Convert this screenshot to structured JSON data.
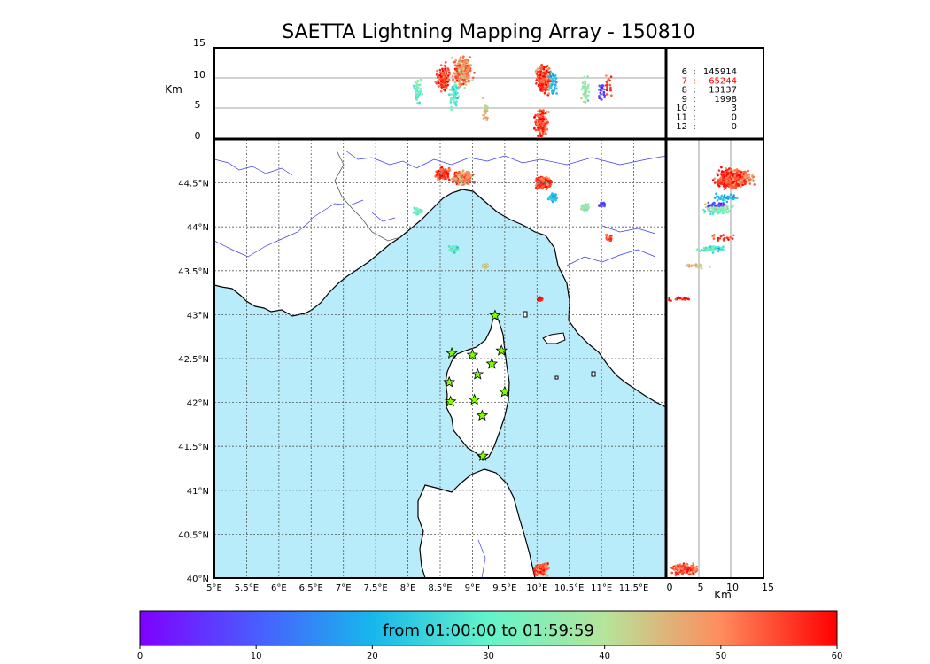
{
  "title": "SAETTA Lightning Mapping Array - 150810",
  "alt_axis": {
    "label": "Km",
    "ticks": [
      "15",
      "10",
      "5",
      "0"
    ],
    "range": [
      0,
      15
    ]
  },
  "map": {
    "lon_range": [
      5,
      12.0
    ],
    "lat_range": [
      40,
      45.0
    ],
    "lon_ticks": [
      "5°E",
      "5.5°E",
      "6°E",
      "6.5°E",
      "7°E",
      "7.5°E",
      "8°E",
      "8.5°E",
      "9°E",
      "9.5°E",
      "10°E",
      "10.5°E",
      "11°E",
      "11.5°E"
    ],
    "lat_ticks": [
      "44.5°N",
      "44°N",
      "43.5°N",
      "43°N",
      "42.5°N",
      "42°N",
      "41.5°N",
      "41°N",
      "40.5°N",
      "40°N"
    ],
    "sea_color": "#b8ecfa",
    "land_color": "#ffffff"
  },
  "alt_side_axis": {
    "label": "Km",
    "ticks": [
      "0",
      "5",
      "10",
      "15"
    ]
  },
  "station_counts": [
    {
      "stations": "6",
      "count": "145914",
      "color": "#000000"
    },
    {
      "stations": "7",
      "count": "65244",
      "color": "#ff0000"
    },
    {
      "stations": "8",
      "count": "13137",
      "color": "#000000"
    },
    {
      "stations": "9",
      "count": "1998",
      "color": "#000000"
    },
    {
      "stations": "10",
      "count": "3",
      "color": "#000000"
    },
    {
      "stations": "11",
      "count": "0",
      "color": "#000000"
    },
    {
      "stations": "12",
      "count": "0",
      "color": "#000000"
    }
  ],
  "stations": [
    {
      "lon": 9.35,
      "lat": 42.99
    },
    {
      "lon": 8.68,
      "lat": 42.56
    },
    {
      "lon": 9.0,
      "lat": 42.54
    },
    {
      "lon": 9.45,
      "lat": 42.59
    },
    {
      "lon": 9.08,
      "lat": 42.32
    },
    {
      "lon": 9.3,
      "lat": 42.44
    },
    {
      "lon": 8.64,
      "lat": 42.23
    },
    {
      "lon": 8.66,
      "lat": 42.01
    },
    {
      "lon": 9.03,
      "lat": 42.03
    },
    {
      "lon": 9.5,
      "lat": 42.12
    },
    {
      "lon": 9.15,
      "lat": 41.85
    },
    {
      "lon": 9.16,
      "lat": 41.39
    }
  ],
  "lightning_clusters": [
    {
      "lon": 8.85,
      "lat": 44.55,
      "r": 0.15,
      "t": 50,
      "n": 260,
      "alt": 11
    },
    {
      "lon": 8.55,
      "lat": 44.6,
      "r": 0.12,
      "t": 55,
      "n": 120,
      "alt": 10
    },
    {
      "lon": 10.1,
      "lat": 44.5,
      "r": 0.12,
      "t": 55,
      "n": 220,
      "alt": 10
    },
    {
      "lon": 10.25,
      "lat": 44.33,
      "r": 0.08,
      "t": 20,
      "n": 40,
      "alt": 9
    },
    {
      "lon": 8.15,
      "lat": 44.18,
      "r": 0.08,
      "t": 32,
      "n": 45,
      "alt": 8
    },
    {
      "lon": 10.75,
      "lat": 44.22,
      "r": 0.07,
      "t": 36,
      "n": 45,
      "alt": 8
    },
    {
      "lon": 11.0,
      "lat": 44.25,
      "r": 0.06,
      "t": 8,
      "n": 25,
      "alt": 8
    },
    {
      "lon": 11.1,
      "lat": 43.88,
      "r": 0.07,
      "t": 55,
      "n": 20,
      "alt": 9
    },
    {
      "lon": 8.72,
      "lat": 43.75,
      "r": 0.07,
      "t": 28,
      "n": 60,
      "alt": 7
    },
    {
      "lon": 9.2,
      "lat": 43.55,
      "r": 0.05,
      "t": 45,
      "n": 25,
      "alt": 5
    },
    {
      "lon": 10.05,
      "lat": 43.18,
      "r": 0.04,
      "t": 59,
      "n": 25,
      "alt": 2
    },
    {
      "lon": 10.07,
      "lat": 40.1,
      "r": 0.12,
      "t": 55,
      "n": 130,
      "alt": 3
    }
  ],
  "colorbar": {
    "label": "from 01:00:00 to 01:59:59",
    "ticks": [
      "0",
      "10",
      "20",
      "30",
      "40",
      "50",
      "60"
    ],
    "range": [
      0,
      60
    ]
  }
}
